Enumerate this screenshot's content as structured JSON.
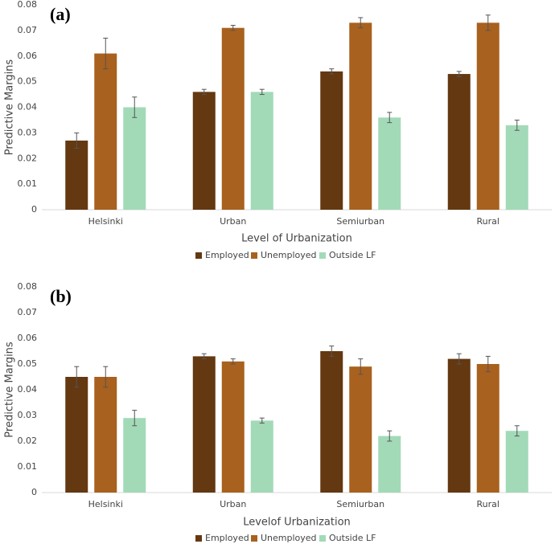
{
  "chart_data": [
    {
      "type": "bar",
      "annotation": "(a)",
      "y_label": "Predictive Margins",
      "x_label": "Level of Urbanization",
      "categories": [
        "Helsinki",
        "Urban",
        "Semiurban",
        "Rural"
      ],
      "series": [
        {
          "name": "Employed",
          "color": "#643811",
          "values": [
            0.027,
            0.046,
            0.054,
            0.053
          ],
          "errors": [
            0.003,
            0.001,
            0.001,
            0.001
          ]
        },
        {
          "name": "Unemployed",
          "color": "#a8611e",
          "values": [
            0.061,
            0.071,
            0.073,
            0.073
          ],
          "errors": [
            0.006,
            0.001,
            0.002,
            0.003
          ]
        },
        {
          "name": "Outside LF",
          "color": "#a2dab8",
          "values": [
            0.04,
            0.046,
            0.036,
            0.033
          ],
          "errors": [
            0.004,
            0.001,
            0.002,
            0.002
          ]
        }
      ],
      "ylim": [
        0,
        0.08
      ],
      "yticks": [
        0,
        0.01,
        0.02,
        0.03,
        0.04,
        0.05,
        0.06,
        0.07,
        0.08
      ],
      "grid": false,
      "legend": "bottom"
    },
    {
      "type": "bar",
      "annotation": "(b)",
      "y_label": "Predictive Margins",
      "x_label": "Levelof Urbanization",
      "categories": [
        "Helsinki",
        "Urban",
        "Semiurban",
        "Rural"
      ],
      "series": [
        {
          "name": "Employed",
          "color": "#643811",
          "values": [
            0.045,
            0.053,
            0.055,
            0.052
          ],
          "errors": [
            0.004,
            0.001,
            0.002,
            0.002
          ]
        },
        {
          "name": "Unemployed",
          "color": "#a8611e",
          "values": [
            0.045,
            0.051,
            0.049,
            0.05
          ],
          "errors": [
            0.004,
            0.001,
            0.003,
            0.003
          ]
        },
        {
          "name": "Outside LF",
          "color": "#a2dab8",
          "values": [
            0.029,
            0.028,
            0.022,
            0.024
          ],
          "errors": [
            0.003,
            0.001,
            0.002,
            0.002
          ]
        }
      ],
      "ylim": [
        0,
        0.08
      ],
      "yticks": [
        0,
        0.01,
        0.02,
        0.03,
        0.04,
        0.05,
        0.06,
        0.07,
        0.08
      ],
      "grid": false,
      "legend": "bottom"
    }
  ]
}
